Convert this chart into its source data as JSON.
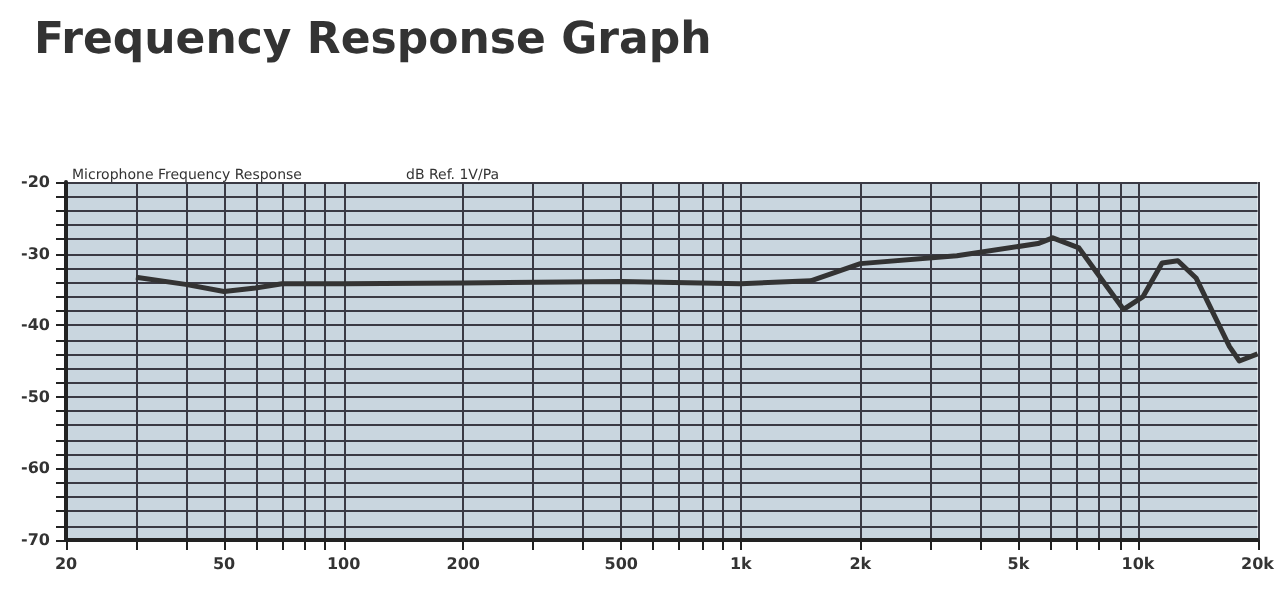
{
  "chart_data": {
    "type": "line",
    "title": "Frequency Response Graph",
    "annotations": [
      "Microphone Frequency Response",
      "dB Ref. 1V/Pa"
    ],
    "log": "x",
    "grid": true,
    "marker": "none",
    "line_style": "solid",
    "xlim": [
      20,
      20000
    ],
    "xticks": [
      20,
      {
        "value": 30,
        "label": null
      },
      {
        "value": 40,
        "label": null
      },
      50,
      {
        "value": 60,
        "label": null
      },
      {
        "value": 70,
        "label": null
      },
      {
        "value": 80,
        "label": null
      },
      {
        "value": 90,
        "label": null
      },
      100,
      200,
      {
        "value": 300,
        "label": null
      },
      {
        "value": 400,
        "label": null
      },
      500,
      {
        "value": 600,
        "label": null
      },
      {
        "value": 700,
        "label": null
      },
      {
        "value": 800,
        "label": null
      },
      {
        "value": 900,
        "label": null
      },
      {
        "value": 1000,
        "label": "1k"
      },
      {
        "value": 2000,
        "label": "2k"
      },
      {
        "value": 3000,
        "label": null
      },
      {
        "value": 4000,
        "label": null
      },
      {
        "value": 5000,
        "label": "5k"
      },
      {
        "value": 6000,
        "label": null
      },
      {
        "value": 7000,
        "label": null
      },
      {
        "value": 8000,
        "label": null
      },
      {
        "value": 9000,
        "label": null
      },
      {
        "value": 10000,
        "label": "10k"
      },
      {
        "value": 20000,
        "label": "20k"
      }
    ],
    "ylim": [
      -70,
      -20
    ],
    "yticks": [
      -70,
      {
        "value": -68,
        "label": null
      },
      {
        "value": -66,
        "label": null
      },
      {
        "value": -64,
        "label": null
      },
      {
        "value": -62,
        "label": null
      },
      -60,
      {
        "value": -58,
        "label": null
      },
      {
        "value": -56,
        "label": null
      },
      {
        "value": -54,
        "label": null
      },
      {
        "value": -52,
        "label": null
      },
      -50,
      {
        "value": -48,
        "label": null
      },
      {
        "value": -46,
        "label": null
      },
      {
        "value": -44,
        "label": null
      },
      {
        "value": -42,
        "label": null
      },
      -40,
      {
        "value": -38,
        "label": null
      },
      {
        "value": -36,
        "label": null
      },
      {
        "value": -34,
        "label": null
      },
      {
        "value": -32,
        "label": null
      },
      -30,
      {
        "value": -28,
        "label": null
      },
      {
        "value": -26,
        "label": null
      },
      {
        "value": -24,
        "label": null
      },
      {
        "value": -22,
        "label": null
      },
      -20
    ],
    "series": [
      {
        "color": "#333333",
        "x": [
          30,
          40,
          50,
          60,
          70,
          100,
          200,
          500,
          1000,
          1500,
          2000,
          3500,
          5600,
          6100,
          7100,
          8200,
          9200,
          10300,
          11500,
          12600,
          14000,
          17000,
          18000,
          20000
        ],
        "values": [
          -33.3,
          -34.3,
          -35.3,
          -34.8,
          -34.2,
          -34.2,
          -34.1,
          -33.9,
          -34.2,
          -33.8,
          -31.4,
          -30.3,
          -28.6,
          -27.8,
          -29.2,
          -34,
          -37.8,
          -36,
          -31.3,
          -31,
          -33.4,
          -43,
          -45,
          -44
        ]
      }
    ]
  }
}
